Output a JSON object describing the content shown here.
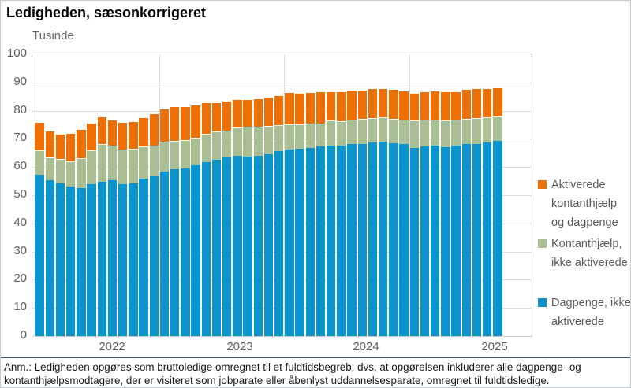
{
  "title": "Ledigheden, sæsonkorrigeret",
  "y_axis_title": "Tusinde",
  "footnote": {
    "lines": [
      "Anm.: Ledigheden opgøres som bruttoledige omregnet til et fuldtidsbegreb; dvs. at opgørelsen inkluderer alle dagpenge- og",
      "kontanthjælpsmodtagere, der er visiteret som jobparate eller åbenlyst uddannelsesparate, omregnet til fuldtidsledige."
    ]
  },
  "chart_data": {
    "type": "bar",
    "stacked": true,
    "title": "Ledigheden, sæsonkorrigeret",
    "ylabel": "Tusinde",
    "unit": "thousand full-time persons",
    "ylim": [
      0,
      100
    ],
    "yticks": [
      0,
      10,
      20,
      30,
      40,
      50,
      60,
      70,
      80,
      90,
      100
    ],
    "grid": true,
    "legend_position": "right",
    "year_labels": [
      "2022",
      "2023",
      "2024",
      "2025"
    ],
    "x": [
      "2022-01",
      "2022-02",
      "2022-03",
      "2022-04",
      "2022-05",
      "2022-06",
      "2022-07",
      "2022-08",
      "2022-09",
      "2022-10",
      "2022-11",
      "2022-12",
      "2023-01",
      "2023-02",
      "2023-03",
      "2023-04",
      "2023-05",
      "2023-06",
      "2023-07",
      "2023-08",
      "2023-09",
      "2023-10",
      "2023-11",
      "2023-12",
      "2024-01",
      "2024-02",
      "2024-03",
      "2024-04",
      "2024-05",
      "2024-06",
      "2024-07",
      "2024-08",
      "2024-09",
      "2024-10",
      "2024-11",
      "2024-12",
      "2025-01",
      "2025-02",
      "2025-03",
      "2025-04",
      "2025-05",
      "2025-06",
      "2025-07",
      "2025-08",
      "2025-09"
    ],
    "series": [
      {
        "name": "Dagpenge, ikke aktiverede",
        "color": "#0b93ce",
        "values": [
          57.3,
          55.2,
          54.1,
          53.2,
          52.4,
          53.8,
          54.7,
          55.2,
          54.0,
          54.3,
          55.8,
          56.8,
          58.4,
          59.1,
          59.5,
          60.5,
          61.7,
          62.6,
          63.3,
          64.0,
          63.7,
          64.0,
          64.6,
          65.6,
          66.3,
          66.5,
          66.9,
          67.2,
          67.7,
          67.5,
          68.1,
          68.3,
          68.8,
          68.9,
          68.4,
          68.1,
          66.9,
          67.4,
          67.7,
          67.1,
          67.6,
          68.1,
          68.3,
          68.6,
          69.3
        ]
      },
      {
        "name": "Kontanthjælp, ikke aktiverede",
        "color": "#a9be93",
        "values": [
          8.5,
          8.3,
          8.7,
          8.9,
          10.8,
          12.0,
          13.4,
          12.3,
          12.3,
          12.2,
          11.4,
          10.9,
          10.7,
          10.2,
          10.0,
          9.8,
          10.2,
          10.1,
          9.6,
          10.0,
          10.5,
          10.3,
          9.9,
          9.3,
          8.8,
          8.6,
          8.4,
          8.1,
          8.8,
          8.7,
          8.8,
          8.8,
          8.6,
          8.7,
          8.8,
          8.8,
          9.6,
          9.4,
          9.2,
          9.4,
          9.1,
          9.0,
          9.1,
          9.0,
          8.6
        ]
      },
      {
        "name": "Aktiverede kontanthjælp og dagpenge",
        "color": "#ed7004",
        "values": [
          10.2,
          9.5,
          9.1,
          9.9,
          10.2,
          9.8,
          9.8,
          9.4,
          9.7,
          9.7,
          10.4,
          11.3,
          11.7,
          12.3,
          12.2,
          11.9,
          11.0,
          10.4,
          10.7,
          10.1,
          10.0,
          10.2,
          10.5,
          10.7,
          11.4,
          11.1,
          11.3,
          11.5,
          10.5,
          10.6,
          10.4,
          10.2,
          10.5,
          10.5,
          10.6,
          10.2,
          9.7,
          10.1,
          10.4,
          10.4,
          10.1,
          10.5,
          10.5,
          10.5,
          10.4
        ]
      }
    ]
  },
  "colors": {
    "gridline": "#dddcd4",
    "plot_border": "#cfcec6",
    "axis_text": "#625f58",
    "separator": "#44546a"
  }
}
